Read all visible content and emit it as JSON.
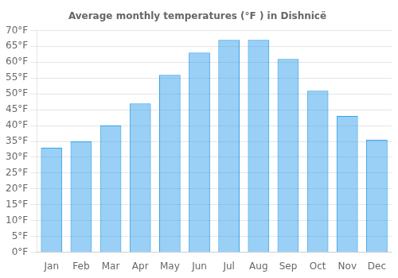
{
  "chart_data": {
    "type": "bar",
    "title": "Average monthly temperatures (°F ) in Dishnicë",
    "categories": [
      "Jan",
      "Feb",
      "Mar",
      "Apr",
      "May",
      "Jun",
      "Jul",
      "Aug",
      "Sep",
      "Oct",
      "Nov",
      "Dec"
    ],
    "values": [
      33,
      35,
      40,
      47,
      56,
      63,
      67,
      67,
      61,
      51,
      43,
      35.5
    ],
    "ylim": [
      0,
      70
    ],
    "yticks": [
      {
        "value": 0,
        "label": "0°F"
      },
      {
        "value": 5,
        "label": "5°F"
      },
      {
        "value": 10,
        "label": "10°F"
      },
      {
        "value": 15,
        "label": "15°F"
      },
      {
        "value": 20,
        "label": "20°F"
      },
      {
        "value": 25,
        "label": "25°F"
      },
      {
        "value": 30,
        "label": "30°F"
      },
      {
        "value": 35,
        "label": "35°F"
      },
      {
        "value": 40,
        "label": "40°F"
      },
      {
        "value": 45,
        "label": "45°F"
      },
      {
        "value": 50,
        "label": "50°F"
      },
      {
        "value": 55,
        "label": "55°F"
      },
      {
        "value": 60,
        "label": "60°F"
      },
      {
        "value": 65,
        "label": "65°F"
      },
      {
        "value": 70,
        "label": "70°F"
      }
    ],
    "grid": true
  }
}
